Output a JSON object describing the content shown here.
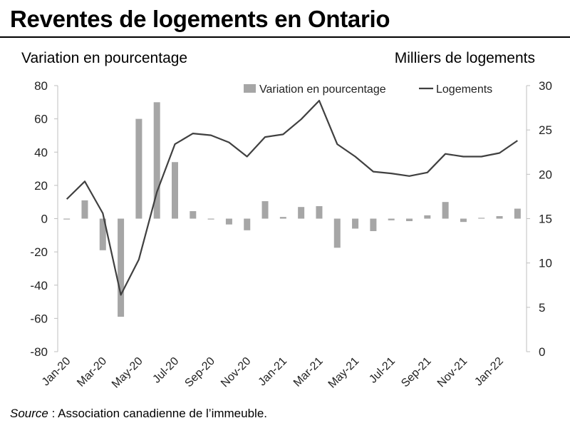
{
  "title": "Reventes de logements en Ontario",
  "source_label": "Source",
  "source_text": " : Association canadienne de l’immeuble.",
  "chart_data": {
    "type": "bar+line",
    "title": "Reventes de logements en Ontario",
    "y_left_label": "Variation en pourcentage",
    "y_right_label": "Milliers de logements",
    "y_left_lim": [
      -80,
      80
    ],
    "y_left_ticks": [
      "-80",
      "-60",
      "-40",
      "-20",
      "0",
      "20",
      "40",
      "60",
      "80"
    ],
    "y_right_lim": [
      0,
      30
    ],
    "y_right_ticks": [
      "0",
      "5",
      "10",
      "15",
      "20",
      "25",
      "30"
    ],
    "categories": [
      "Jan-20",
      "Feb-20",
      "Mar-20",
      "Apr-20",
      "May-20",
      "Jun-20",
      "Jul-20",
      "Aug-20",
      "Sep-20",
      "Oct-20",
      "Nov-20",
      "Dec-20",
      "Jan-21",
      "Feb-21",
      "Mar-21",
      "Apr-21",
      "May-21",
      "Jun-21",
      "Jul-21",
      "Aug-21",
      "Sep-21",
      "Oct-21",
      "Nov-21",
      "Dec-21",
      "Jan-22",
      "Feb-22"
    ],
    "x_tick_labels": [
      "Jan-20",
      "Mar-20",
      "May-20",
      "Jul-20",
      "Sep-20",
      "Nov-20",
      "Jan-21",
      "Mar-21",
      "May-21",
      "Jul-21",
      "Sep-21",
      "Nov-21",
      "Jan-22"
    ],
    "series": [
      {
        "name": "Variation en pourcentage",
        "type": "bar",
        "axis": "left",
        "color": "#a6a6a6",
        "values": [
          -0.5,
          11,
          -19,
          -59,
          60,
          70,
          34,
          4.5,
          -0.5,
          -3.5,
          -7,
          10.5,
          1,
          7,
          7.5,
          -17.5,
          -6,
          -7.5,
          -1,
          -1.5,
          2,
          10,
          -2,
          0.5,
          1.5,
          6
        ]
      },
      {
        "name": "Logements",
        "type": "line",
        "axis": "right",
        "color": "#404040",
        "values": [
          17.2,
          19.2,
          15.6,
          6.4,
          10.4,
          18.0,
          23.4,
          24.6,
          24.4,
          23.6,
          22.0,
          24.2,
          24.5,
          26.2,
          28.3,
          23.4,
          22.0,
          20.3,
          20.1,
          19.8,
          20.2,
          22.3,
          22.0,
          22.0,
          22.4,
          23.8
        ]
      }
    ],
    "legend_position": "top",
    "grid": false
  }
}
